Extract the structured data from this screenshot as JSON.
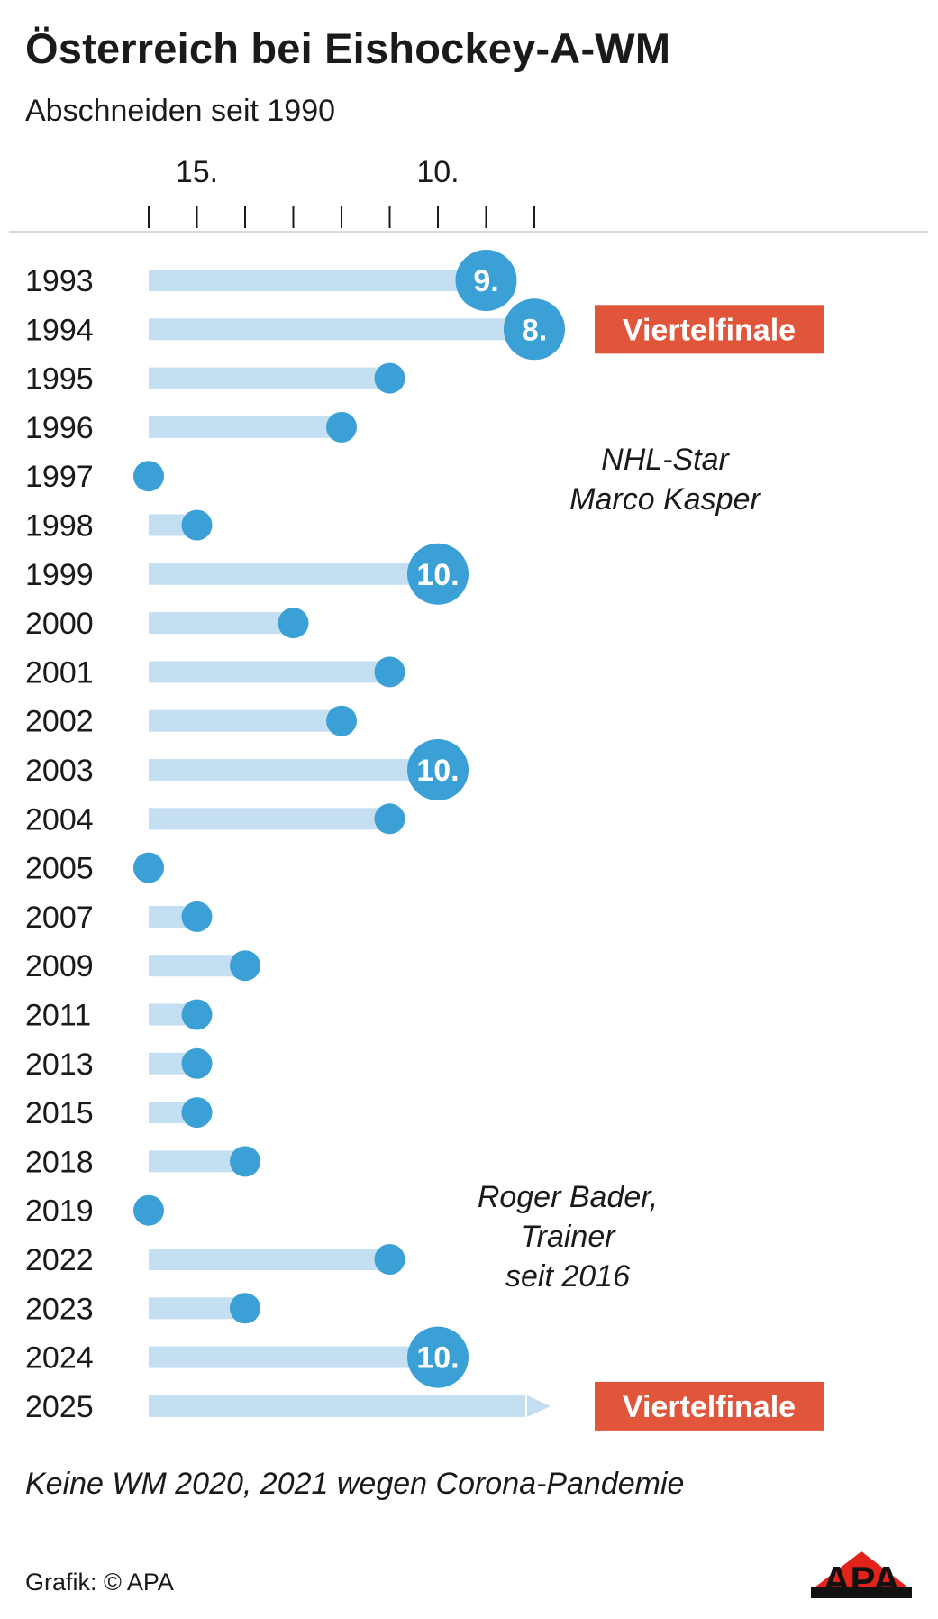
{
  "title": "Österreich bei Eishockey-A-WM",
  "subtitle": "Abschneiden seit 1990",
  "footnote": "Keine WM 2020, 2021 wegen Corona-Pandemie",
  "credit": "Grafik: © APA",
  "logo_text": "APA",
  "colors": {
    "bar": "#c5dff2",
    "dot": "#3aa0d6",
    "badge": "#e1553b",
    "text": "#1a1a1a",
    "logo_red": "#e2231a"
  },
  "captions": {
    "player": [
      "NHL-Star",
      "Marco Kasper"
    ],
    "coach": [
      "Roger Bader,",
      "Trainer",
      "seit 2016"
    ]
  },
  "chart_data": {
    "type": "bar",
    "orientation": "horizontal",
    "title": "Österreich bei Eishockey-A-WM",
    "subtitle": "Abschneiden seit 1990",
    "x_axis": {
      "reversed": true,
      "xlim": [
        16,
        8
      ],
      "ticks": [
        16,
        15,
        14,
        13,
        12,
        11,
        10,
        9,
        8
      ],
      "tick_labels": [
        {
          "value": 15,
          "label": "15."
        },
        {
          "value": 10,
          "label": "10."
        }
      ]
    },
    "categories": [
      "1993",
      "1994",
      "1995",
      "1996",
      "1997",
      "1998",
      "1999",
      "2000",
      "2001",
      "2002",
      "2003",
      "2004",
      "2005",
      "2007",
      "2009",
      "2011",
      "2013",
      "2015",
      "2018",
      "2019",
      "2022",
      "2023",
      "2024",
      "2025"
    ],
    "values": [
      9,
      8,
      11,
      12,
      16,
      15,
      10,
      13,
      11,
      12,
      10,
      11,
      16,
      15,
      14,
      15,
      15,
      15,
      14,
      16,
      11,
      14,
      10,
      null
    ],
    "value_labels": [
      "9.",
      "8.",
      "",
      "",
      "",
      "",
      "10.",
      "",
      "",
      "",
      "10.",
      "",
      "",
      "",
      "",
      "",
      "",
      "",
      "",
      "",
      "",
      "",
      "10.",
      ""
    ],
    "annotations": [
      {
        "category": "1994",
        "text": "Viertelfinale"
      },
      {
        "category": "2025",
        "text": "Viertelfinale"
      }
    ]
  }
}
